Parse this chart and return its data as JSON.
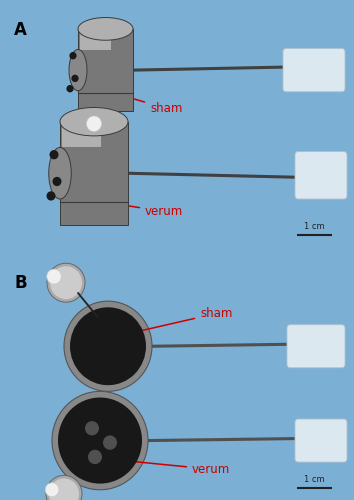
{
  "fig_width": 3.54,
  "fig_height": 5.0,
  "dpi": 100,
  "bg_color": "#7bafd4",
  "border_color": "#4a4a4a",
  "panel_label_color": "black",
  "label_color": "#cc0000",
  "arrow_color": "#cc0000",
  "panel_A_label": "A",
  "panel_B_label": "B",
  "sham_label_A": "sham",
  "verum_label_A": "verum",
  "sham_label_B": "sham",
  "verum_label_B": "verum",
  "scale_bar_text": "1 cm",
  "metal_dark": "#3a3a3a",
  "metal_mid": "#787878",
  "metal_light": "#b0b0b0",
  "metal_shine": "#d8d8d8",
  "handle_face": "#dce8f0",
  "handle_edge": "#b0c0cc",
  "rod_color": "#404040",
  "face_dark": "#555555",
  "face_mid": "#888888",
  "face_light": "#aaaaaa",
  "hole_color": "#1a1a1a",
  "white_tip": "#f0f0f0",
  "separator_color": "#ffffff"
}
